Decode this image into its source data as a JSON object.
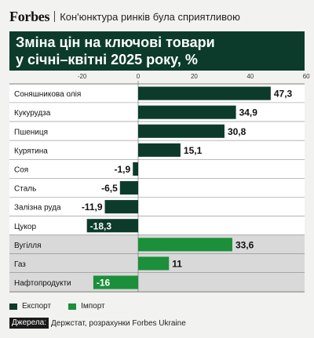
{
  "header": {
    "brand": "Forbes",
    "headline": "Кон'юнктура ринків була сприятливою"
  },
  "title": {
    "line1": "Зміна цін на ключові товари",
    "line2": "у січні–квітні 2025 року, %"
  },
  "legend": {
    "export_label": "Експорт",
    "import_label": "Імпорт"
  },
  "source": {
    "label": "Джерела:",
    "text": "Держстат, розрахунки Forbes Ukraine"
  },
  "colors": {
    "export": "#0c3b2b",
    "import": "#1b8f3a",
    "export_row_bg": "#ffffff",
    "import_row_bg": "#d9d9d9",
    "title_bg": "#0c3b2b"
  },
  "chart_data": {
    "type": "bar",
    "orientation": "horizontal",
    "xlim": [
      -30,
      60
    ],
    "x_ticks": [
      "-20",
      "0",
      "20",
      "40",
      "60"
    ],
    "x_tick_values": [
      -20,
      0,
      20,
      40,
      60
    ],
    "categories": [
      "Соняшникова олія",
      "Кукурудза",
      "Пшениця",
      "Курятина",
      "Соя",
      "Сталь",
      "Залізна руда",
      "Цукор",
      "Вугілля",
      "Газ",
      "Нафтопродукти"
    ],
    "series": [
      {
        "name": "Експорт",
        "values": [
          47.3,
          34.9,
          30.8,
          15.1,
          -1.9,
          -6.5,
          -11.9,
          -18.3,
          null,
          null,
          null
        ],
        "labels": [
          "47,3",
          "34,9",
          "30,8",
          "15,1",
          "-1,9",
          "-6,5",
          "-11,9",
          "-18,3",
          "",
          "",
          ""
        ]
      },
      {
        "name": "Імпорт",
        "values": [
          null,
          null,
          null,
          null,
          null,
          null,
          null,
          null,
          33.6,
          11,
          -16
        ],
        "labels": [
          "",
          "",
          "",
          "",
          "",
          "",
          "",
          "",
          "33,6",
          "11",
          "-16"
        ]
      }
    ],
    "grid": false,
    "legend_position": "bottom-left"
  }
}
